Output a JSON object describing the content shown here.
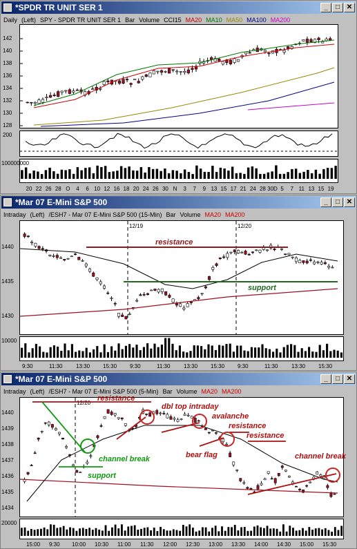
{
  "windows": [
    {
      "title": "*SPDR TR UNIT SER 1",
      "legend": [
        "Daily",
        "(Left)",
        "SPY - SPDR TR UNIT SER 1",
        "Bar",
        "Volume",
        "CCI15",
        "MA20",
        "MA10",
        "MA50",
        "MA100",
        "MA200"
      ],
      "legend_colors": [
        "#000",
        "#000",
        "#000",
        "#000",
        "#000",
        "#000",
        "#cc0000",
        "#007700",
        "#998800",
        "#000088",
        "#cc00cc"
      ],
      "y_ticks": [
        "142",
        "140",
        "138",
        "136",
        "134",
        "132",
        "130",
        "128"
      ],
      "cci_tick": "200",
      "vol_tick": "100000000",
      "x_ticks": [
        "20",
        "22",
        "26",
        "28",
        "O",
        "4",
        "6",
        "10",
        "12",
        "16",
        "18",
        "20",
        "24",
        "26",
        "30",
        "N",
        "3",
        "7",
        "9",
        "13",
        "15",
        "17",
        "21",
        "24",
        "28",
        "30D",
        "5",
        "7",
        "11",
        "13",
        "15",
        "19"
      ]
    },
    {
      "title": "*Mar 07  E-Mini S&P 500",
      "legend": [
        "Intraday",
        "(Left)",
        "/ESH7 - Mar 07  E-Mini S&P 500 (15-Min)",
        "Bar",
        "Volume",
        "MA20",
        "MA200"
      ],
      "legend_colors": [
        "#000",
        "#000",
        "#000",
        "#000",
        "#000",
        "#cc0000",
        "#cc0000"
      ],
      "date_marks": [
        "12/19",
        "12/20"
      ],
      "y_ticks": [
        "1440",
        "1435",
        "1430"
      ],
      "vol_tick": "10000",
      "x_ticks": [
        "9:30",
        "11:30",
        "13:30",
        "15:30",
        "9:30",
        "11:30",
        "13:30",
        "15:30",
        "9:30",
        "11:30",
        "13:30",
        "15:30"
      ],
      "annotations": {
        "resistance": "resistance",
        "support": "support"
      }
    },
    {
      "title": "*Mar 07  E-Mini S&P 500",
      "legend": [
        "Intraday",
        "(Left)",
        "/ESH7 - Mar 07  E-Mini S&P 500 (5-Min)",
        "Bar",
        "Volume",
        "MA20",
        "MA200"
      ],
      "legend_colors": [
        "#000",
        "#000",
        "#000",
        "#000",
        "#000",
        "#cc0000",
        "#cc0000"
      ],
      "date_mark": "12/20",
      "y_ticks": [
        "1440",
        "1439",
        "1438",
        "1437",
        "1436",
        "1435",
        "1434"
      ],
      "vol_tick": "20000",
      "x_ticks": [
        "15:00",
        "9:30",
        "10:00",
        "10:30",
        "11:00",
        "11:30",
        "12:00",
        "12:30",
        "13:00",
        "13:30",
        "14:00",
        "14:30",
        "15:00",
        "15:30"
      ],
      "annotations": {
        "resistance1": "resistance",
        "dbl_top": "dbl top intraday",
        "avalanche": "avalanche",
        "resistance2": "resistance",
        "resistance3": "resistance",
        "channel_break_green": "channel break",
        "support": "support",
        "bear_flag": "bear flag",
        "channel_break_red": "channel break"
      }
    }
  ]
}
